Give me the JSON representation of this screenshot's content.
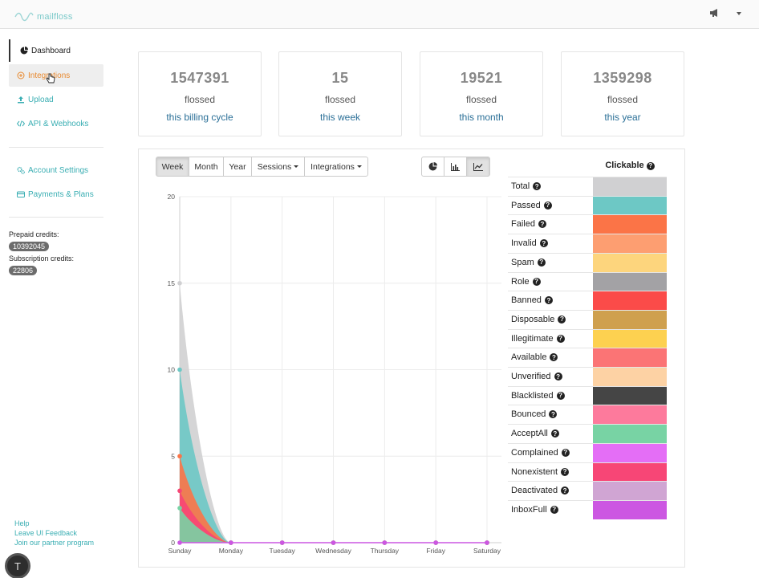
{
  "brand": {
    "name": "mailfloss"
  },
  "sidebar": {
    "items": [
      {
        "label": "Dashboard",
        "icon": "pie-chart-icon"
      },
      {
        "label": "Integrations",
        "icon": "plus-circle-icon"
      },
      {
        "label": "Upload",
        "icon": "upload-icon"
      },
      {
        "label": "API & Webhooks",
        "icon": "code-icon"
      },
      {
        "label": "Account Settings",
        "icon": "cogs-icon"
      },
      {
        "label": "Payments & Plans",
        "icon": "credit-card-icon"
      }
    ],
    "credits": {
      "prepaid_label": "Prepaid credits:",
      "prepaid_value": "10392045",
      "subscription_label": "Subscription credits:",
      "subscription_value": "22806"
    },
    "footer_links": [
      "Help",
      "Leave UI Feedback",
      "Join our partner program"
    ],
    "user_initial": "T"
  },
  "stats": [
    {
      "value": "1547391",
      "label": "flossed",
      "period": "this billing cycle"
    },
    {
      "value": "15",
      "label": "flossed",
      "period": "this week"
    },
    {
      "value": "19521",
      "label": "flossed",
      "period": "this month"
    },
    {
      "value": "1359298",
      "label": "flossed",
      "period": "this year"
    }
  ],
  "range_tabs": [
    "Week",
    "Month",
    "Year",
    "Sessions",
    "Integrations"
  ],
  "chart_type_buttons": [
    "pie-chart-icon",
    "bar-chart-icon",
    "line-chart-icon"
  ],
  "legend": {
    "header": "Clickable",
    "items": [
      {
        "label": "Total",
        "color": "#d0d0d2"
      },
      {
        "label": "Passed",
        "color": "#6dc8c5"
      },
      {
        "label": "Failed",
        "color": "#fb7447"
      },
      {
        "label": "Invalid",
        "color": "#fd9e71"
      },
      {
        "label": "Spam",
        "color": "#fdd57d"
      },
      {
        "label": "Role",
        "color": "#a3a2a5"
      },
      {
        "label": "Banned",
        "color": "#fb4b49"
      },
      {
        "label": "Disposable",
        "color": "#cfa04e"
      },
      {
        "label": "Illegitimate",
        "color": "#fdd150"
      },
      {
        "label": "Available",
        "color": "#fb7475"
      },
      {
        "label": "Unverified",
        "color": "#fdd2a4"
      },
      {
        "label": "Blacklisted",
        "color": "#454545"
      },
      {
        "label": "Bounced",
        "color": "#fd7a9c"
      },
      {
        "label": "AcceptAll",
        "color": "#78d3a4"
      },
      {
        "label": "Complained",
        "color": "#e46ef6"
      },
      {
        "label": "Nonexistent",
        "color": "#f74676"
      },
      {
        "label": "Deactivated",
        "color": "#d0a5d3"
      },
      {
        "label": "InboxFull",
        "color": "#cc57e2"
      }
    ]
  },
  "chart_data": {
    "type": "area",
    "categories": [
      "Sunday",
      "Monday",
      "Tuesday",
      "Wednesday",
      "Thursday",
      "Friday",
      "Saturday"
    ],
    "ylim": [
      0,
      20
    ],
    "yticks": [
      0,
      5,
      10,
      15,
      20
    ],
    "grid": true,
    "series": [
      {
        "name": "Total",
        "color": "#d0d0d2",
        "values": [
          15,
          0,
          0,
          0,
          0,
          0,
          0
        ]
      },
      {
        "name": "Passed",
        "color": "#6dc8c5",
        "values": [
          10,
          0,
          0,
          0,
          0,
          0,
          0
        ]
      },
      {
        "name": "Failed",
        "color": "#fb7447",
        "values": [
          5,
          0,
          0,
          0,
          0,
          0,
          0
        ]
      },
      {
        "name": "Nonexistent",
        "color": "#f74676",
        "values": [
          3,
          0,
          0,
          0,
          0,
          0,
          0
        ]
      },
      {
        "name": "AcceptAll",
        "color": "#78d3a4",
        "values": [
          2,
          0,
          0,
          0,
          0,
          0,
          0
        ]
      },
      {
        "name": "InboxFull",
        "color": "#cc57e2",
        "values": [
          0,
          0,
          0,
          0,
          0,
          0,
          0
        ]
      }
    ]
  }
}
